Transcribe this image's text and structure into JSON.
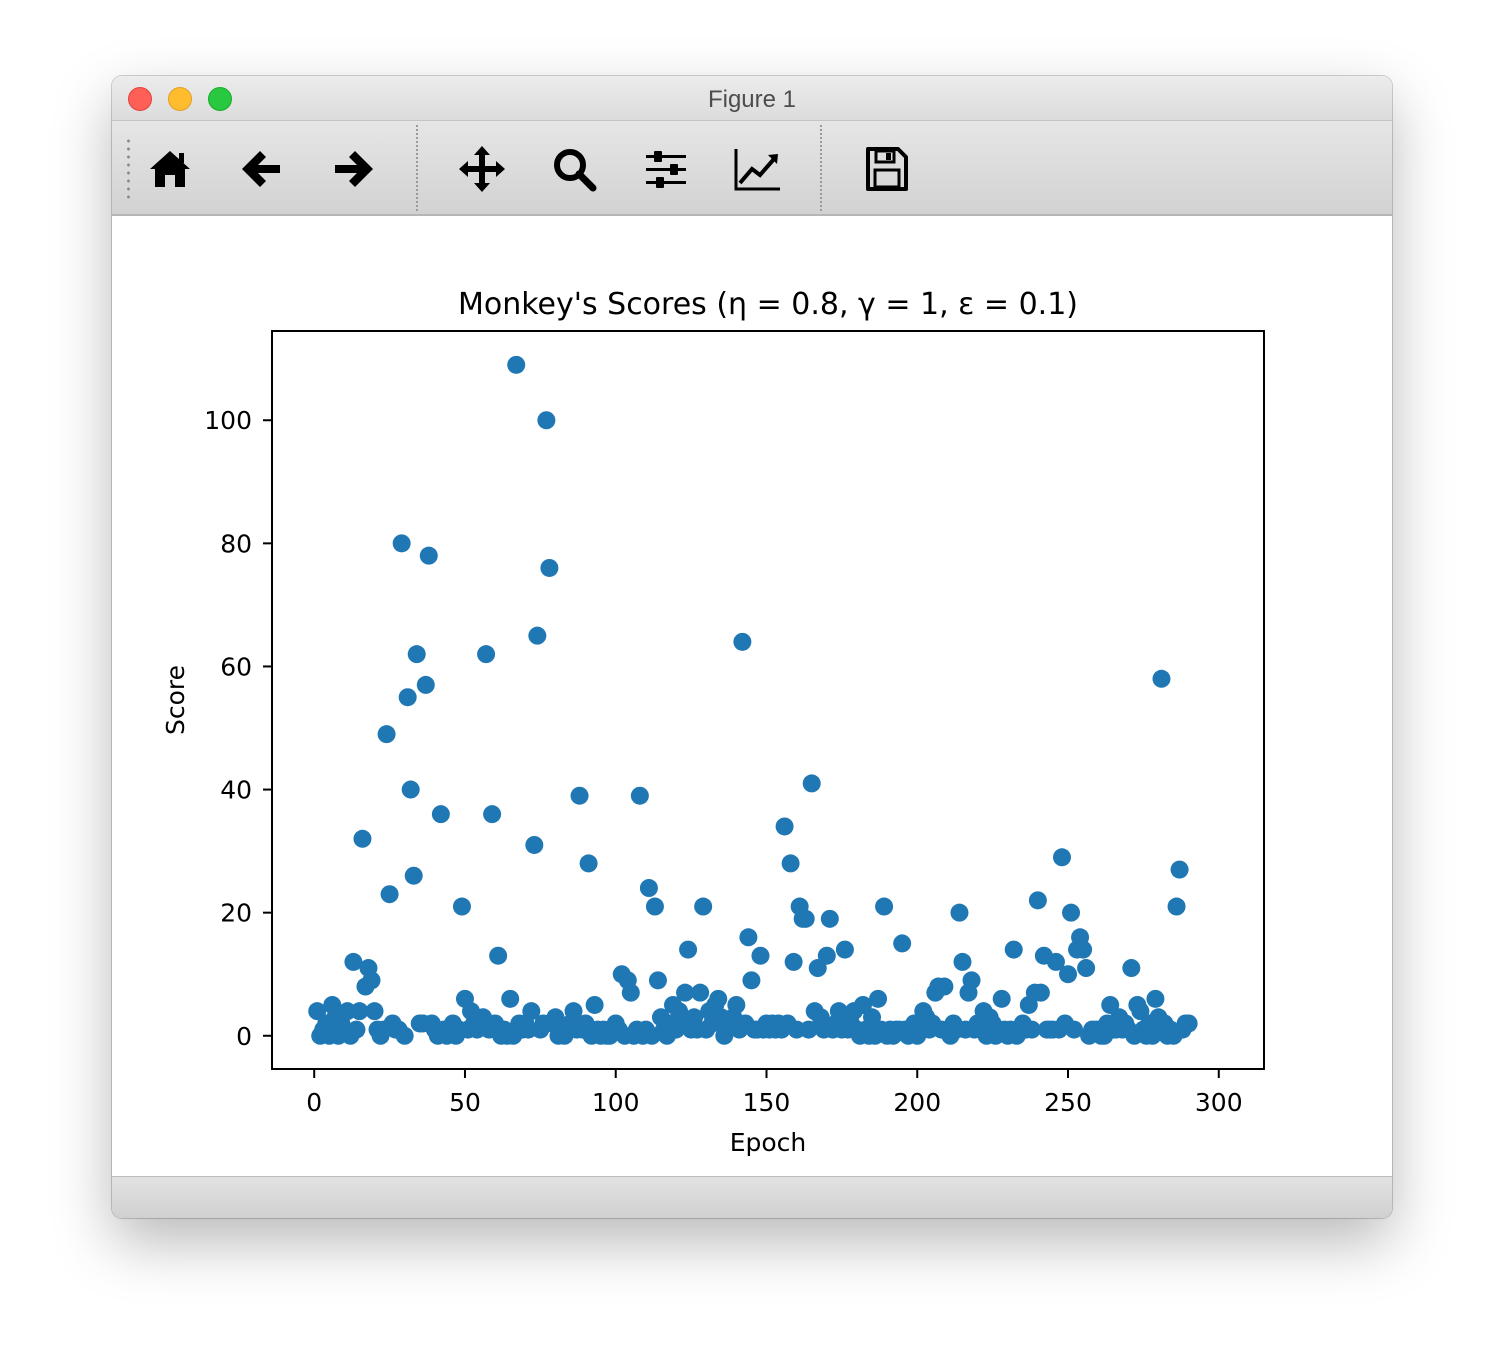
{
  "window": {
    "title": "Figure 1"
  },
  "toolbar": {
    "tools": [
      {
        "name": "home-icon",
        "tooltip": "Home"
      },
      {
        "name": "back-arrow-icon",
        "tooltip": "Back"
      },
      {
        "name": "forward-arrow-icon",
        "tooltip": "Forward"
      },
      {
        "name": "pan-move-icon",
        "tooltip": "Pan"
      },
      {
        "name": "zoom-magnifier-icon",
        "tooltip": "Zoom"
      },
      {
        "name": "subplots-sliders-icon",
        "tooltip": "Subplots"
      },
      {
        "name": "axes-line-chart-icon",
        "tooltip": "Customize"
      },
      {
        "name": "save-floppy-icon",
        "tooltip": "Save"
      }
    ]
  },
  "chart_data": {
    "type": "scatter",
    "title": "Monkey's Scores (η = 0.8, γ = 1, ε = 0.1)",
    "xlabel": "Epoch",
    "ylabel": "Score",
    "xlim": [
      -14,
      315
    ],
    "ylim": [
      -5.4,
      114.5
    ],
    "xticks": [
      0,
      50,
      100,
      150,
      200,
      250,
      300
    ],
    "yticks": [
      0,
      20,
      40,
      60,
      80,
      100
    ],
    "grid": false,
    "legend": "none",
    "marker_color": "#1f77b4",
    "points": [
      [
        1,
        4
      ],
      [
        2,
        0
      ],
      [
        3,
        1
      ],
      [
        4,
        2
      ],
      [
        5,
        0
      ],
      [
        6,
        5
      ],
      [
        7,
        3
      ],
      [
        8,
        0
      ],
      [
        9,
        2
      ],
      [
        10,
        1
      ],
      [
        11,
        4
      ],
      [
        12,
        0
      ],
      [
        13,
        12
      ],
      [
        14,
        1
      ],
      [
        15,
        4
      ],
      [
        16,
        32
      ],
      [
        17,
        8
      ],
      [
        18,
        11
      ],
      [
        19,
        9
      ],
      [
        20,
        4
      ],
      [
        21,
        1
      ],
      [
        22,
        0
      ],
      [
        23,
        1
      ],
      [
        24,
        49
      ],
      [
        25,
        23
      ],
      [
        26,
        2
      ],
      [
        27,
        1
      ],
      [
        28,
        1
      ],
      [
        29,
        80
      ],
      [
        30,
        0
      ],
      [
        31,
        55
      ],
      [
        32,
        40
      ],
      [
        33,
        26
      ],
      [
        34,
        62
      ],
      [
        35,
        2
      ],
      [
        36,
        2
      ],
      [
        37,
        57
      ],
      [
        38,
        78
      ],
      [
        39,
        2
      ],
      [
        40,
        1
      ],
      [
        41,
        0
      ],
      [
        42,
        36
      ],
      [
        43,
        1
      ],
      [
        44,
        0
      ],
      [
        45,
        1
      ],
      [
        46,
        2
      ],
      [
        47,
        0
      ],
      [
        48,
        1
      ],
      [
        49,
        21
      ],
      [
        50,
        6
      ],
      [
        51,
        1
      ],
      [
        52,
        4
      ],
      [
        53,
        2
      ],
      [
        54,
        1
      ],
      [
        55,
        2
      ],
      [
        56,
        3
      ],
      [
        57,
        62
      ],
      [
        58,
        1
      ],
      [
        59,
        36
      ],
      [
        60,
        2
      ],
      [
        61,
        13
      ],
      [
        62,
        0
      ],
      [
        63,
        1
      ],
      [
        64,
        0
      ],
      [
        65,
        6
      ],
      [
        66,
        0
      ],
      [
        67,
        109
      ],
      [
        68,
        2
      ],
      [
        69,
        1
      ],
      [
        70,
        2
      ],
      [
        71,
        1
      ],
      [
        72,
        4
      ],
      [
        73,
        31
      ],
      [
        74,
        65
      ],
      [
        75,
        1
      ],
      [
        76,
        2
      ],
      [
        77,
        100
      ],
      [
        78,
        76
      ],
      [
        79,
        2
      ],
      [
        80,
        3
      ],
      [
        81,
        0
      ],
      [
        82,
        1
      ],
      [
        83,
        0
      ],
      [
        84,
        1
      ],
      [
        85,
        2
      ],
      [
        86,
        4
      ],
      [
        87,
        1
      ],
      [
        88,
        39
      ],
      [
        89,
        1
      ],
      [
        90,
        2
      ],
      [
        91,
        28
      ],
      [
        92,
        0
      ],
      [
        93,
        5
      ],
      [
        94,
        1
      ],
      [
        95,
        0
      ],
      [
        96,
        1
      ],
      [
        97,
        0
      ],
      [
        98,
        0
      ],
      [
        99,
        1
      ],
      [
        100,
        2
      ],
      [
        101,
        1
      ],
      [
        102,
        10
      ],
      [
        103,
        0
      ],
      [
        104,
        9
      ],
      [
        105,
        7
      ],
      [
        106,
        0
      ],
      [
        107,
        1
      ],
      [
        108,
        39
      ],
      [
        109,
        0
      ],
      [
        110,
        1
      ],
      [
        111,
        24
      ],
      [
        112,
        0
      ],
      [
        113,
        21
      ],
      [
        114,
        9
      ],
      [
        115,
        3
      ],
      [
        116,
        1
      ],
      [
        117,
        0
      ],
      [
        118,
        2
      ],
      [
        119,
        5
      ],
      [
        120,
        1
      ],
      [
        121,
        4
      ],
      [
        122,
        2
      ],
      [
        123,
        7
      ],
      [
        124,
        14
      ],
      [
        125,
        1
      ],
      [
        126,
        3
      ],
      [
        127,
        1
      ],
      [
        128,
        7
      ],
      [
        129,
        21
      ],
      [
        130,
        1
      ],
      [
        131,
        4
      ],
      [
        132,
        2
      ],
      [
        133,
        5
      ],
      [
        134,
        6
      ],
      [
        135,
        3
      ],
      [
        136,
        0
      ],
      [
        137,
        1
      ],
      [
        138,
        2
      ],
      [
        139,
        3
      ],
      [
        140,
        5
      ],
      [
        141,
        1
      ],
      [
        142,
        64
      ],
      [
        143,
        2
      ],
      [
        144,
        16
      ],
      [
        145,
        9
      ],
      [
        146,
        1
      ],
      [
        147,
        1
      ],
      [
        148,
        13
      ],
      [
        149,
        1
      ],
      [
        150,
        2
      ],
      [
        151,
        1
      ],
      [
        152,
        2
      ],
      [
        153,
        1
      ],
      [
        154,
        2
      ],
      [
        155,
        1
      ],
      [
        156,
        34
      ],
      [
        157,
        2
      ],
      [
        158,
        28
      ],
      [
        159,
        12
      ],
      [
        160,
        1
      ],
      [
        161,
        21
      ],
      [
        162,
        19
      ],
      [
        163,
        19
      ],
      [
        164,
        1
      ],
      [
        165,
        41
      ],
      [
        166,
        4
      ],
      [
        167,
        11
      ],
      [
        168,
        3
      ],
      [
        169,
        1
      ],
      [
        170,
        13
      ],
      [
        171,
        19
      ],
      [
        172,
        1
      ],
      [
        173,
        2
      ],
      [
        174,
        4
      ],
      [
        175,
        1
      ],
      [
        176,
        14
      ],
      [
        177,
        1
      ],
      [
        178,
        2
      ],
      [
        179,
        4
      ],
      [
        180,
        1
      ],
      [
        181,
        0
      ],
      [
        182,
        5
      ],
      [
        183,
        1
      ],
      [
        184,
        0
      ],
      [
        185,
        3
      ],
      [
        186,
        0
      ],
      [
        187,
        6
      ],
      [
        188,
        1
      ],
      [
        189,
        21
      ],
      [
        190,
        0
      ],
      [
        191,
        1
      ],
      [
        192,
        0
      ],
      [
        193,
        1
      ],
      [
        194,
        1
      ],
      [
        195,
        15
      ],
      [
        196,
        1
      ],
      [
        197,
        0
      ],
      [
        198,
        1
      ],
      [
        199,
        2
      ],
      [
        200,
        0
      ],
      [
        201,
        1
      ],
      [
        202,
        4
      ],
      [
        203,
        3
      ],
      [
        204,
        1
      ],
      [
        205,
        2
      ],
      [
        206,
        7
      ],
      [
        207,
        8
      ],
      [
        208,
        1
      ],
      [
        209,
        8
      ],
      [
        210,
        1
      ],
      [
        211,
        0
      ],
      [
        212,
        2
      ],
      [
        213,
        1
      ],
      [
        214,
        20
      ],
      [
        215,
        12
      ],
      [
        216,
        1
      ],
      [
        217,
        7
      ],
      [
        218,
        9
      ],
      [
        219,
        1
      ],
      [
        220,
        2
      ],
      [
        221,
        1
      ],
      [
        222,
        4
      ],
      [
        223,
        0
      ],
      [
        224,
        3
      ],
      [
        225,
        2
      ],
      [
        226,
        0
      ],
      [
        227,
        1
      ],
      [
        228,
        6
      ],
      [
        229,
        1
      ],
      [
        230,
        0
      ],
      [
        231,
        1
      ],
      [
        232,
        14
      ],
      [
        233,
        0
      ],
      [
        234,
        1
      ],
      [
        235,
        2
      ],
      [
        236,
        1
      ],
      [
        237,
        5
      ],
      [
        238,
        1
      ],
      [
        239,
        7
      ],
      [
        240,
        22
      ],
      [
        241,
        7
      ],
      [
        242,
        13
      ],
      [
        243,
        1
      ],
      [
        244,
        1
      ],
      [
        245,
        1
      ],
      [
        246,
        12
      ],
      [
        247,
        1
      ],
      [
        248,
        29
      ],
      [
        249,
        2
      ],
      [
        250,
        10
      ],
      [
        251,
        20
      ],
      [
        252,
        1
      ],
      [
        253,
        14
      ],
      [
        254,
        16
      ],
      [
        255,
        14
      ],
      [
        256,
        11
      ],
      [
        257,
        0
      ],
      [
        258,
        1
      ],
      [
        259,
        1
      ],
      [
        260,
        1
      ],
      [
        261,
        0
      ],
      [
        262,
        0
      ],
      [
        263,
        2
      ],
      [
        264,
        5
      ],
      [
        265,
        1
      ],
      [
        266,
        1
      ],
      [
        267,
        3
      ],
      [
        268,
        1
      ],
      [
        269,
        2
      ],
      [
        270,
        1
      ],
      [
        271,
        11
      ],
      [
        272,
        0
      ],
      [
        273,
        5
      ],
      [
        274,
        4
      ],
      [
        275,
        1
      ],
      [
        276,
        0
      ],
      [
        277,
        2
      ],
      [
        278,
        0
      ],
      [
        279,
        6
      ],
      [
        280,
        3
      ],
      [
        281,
        58
      ],
      [
        282,
        2
      ],
      [
        283,
        0
      ],
      [
        284,
        1
      ],
      [
        285,
        0
      ],
      [
        286,
        21
      ],
      [
        287,
        27
      ],
      [
        288,
        1
      ],
      [
        289,
        2
      ],
      [
        290,
        2
      ]
    ]
  }
}
